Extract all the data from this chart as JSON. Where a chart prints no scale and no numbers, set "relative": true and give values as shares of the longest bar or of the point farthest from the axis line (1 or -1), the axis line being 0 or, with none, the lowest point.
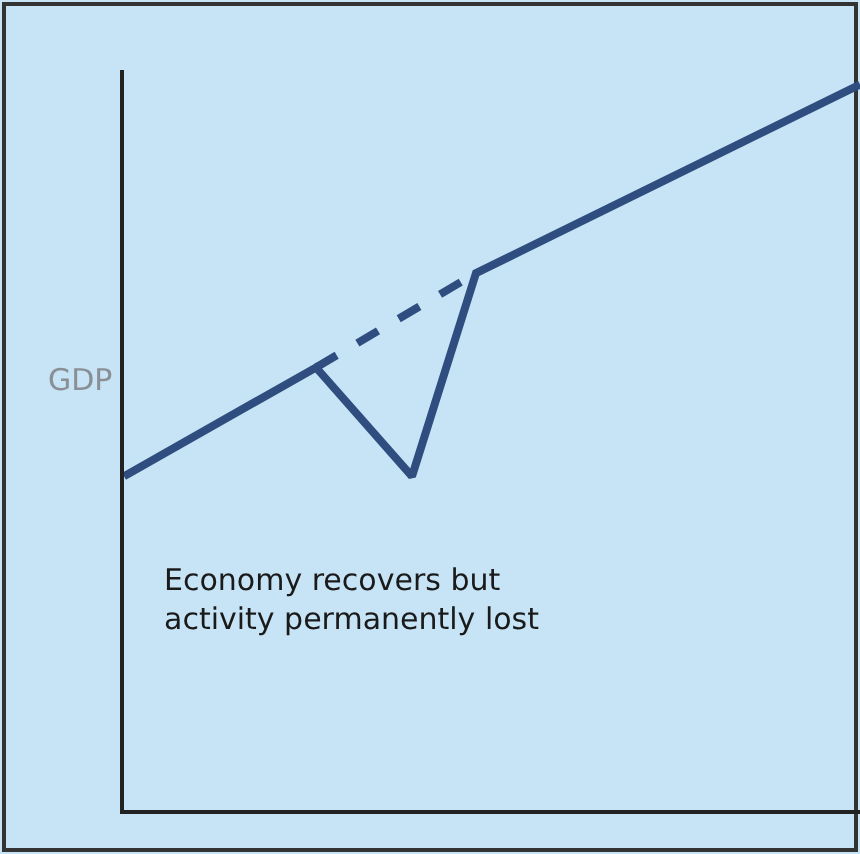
{
  "chart_data": {
    "type": "line",
    "relative": true,
    "ylabel": "GDP",
    "annotations": [
      "Economy recovers but\nactivity permanently lost"
    ],
    "grid": false,
    "marker": "none",
    "categories": [
      null,
      null,
      null,
      null,
      null,
      null,
      null,
      null,
      null,
      null,
      null,
      null,
      null,
      null,
      null,
      null,
      null,
      null,
      null,
      null,
      null,
      null,
      null,
      null
    ],
    "series": [
      {
        "color": "#2f4d7e",
        "values": [
          0.46,
          null,
          null,
          null,
          null,
          null,
          0.61,
          null,
          null,
          0.46,
          null,
          0.74,
          null,
          null,
          null,
          null,
          null,
          null,
          null,
          null,
          null,
          null,
          null,
          1.0
        ],
        "line_style": "solid"
      },
      {
        "color": "#2f4d7e",
        "values": [
          null,
          null,
          null,
          null,
          null,
          null,
          0.61,
          null,
          null,
          null,
          null,
          0.74,
          null,
          null,
          null,
          null,
          null,
          null,
          null,
          null,
          null,
          null,
          null,
          null
        ],
        "line_style": "dashed"
      }
    ]
  }
}
